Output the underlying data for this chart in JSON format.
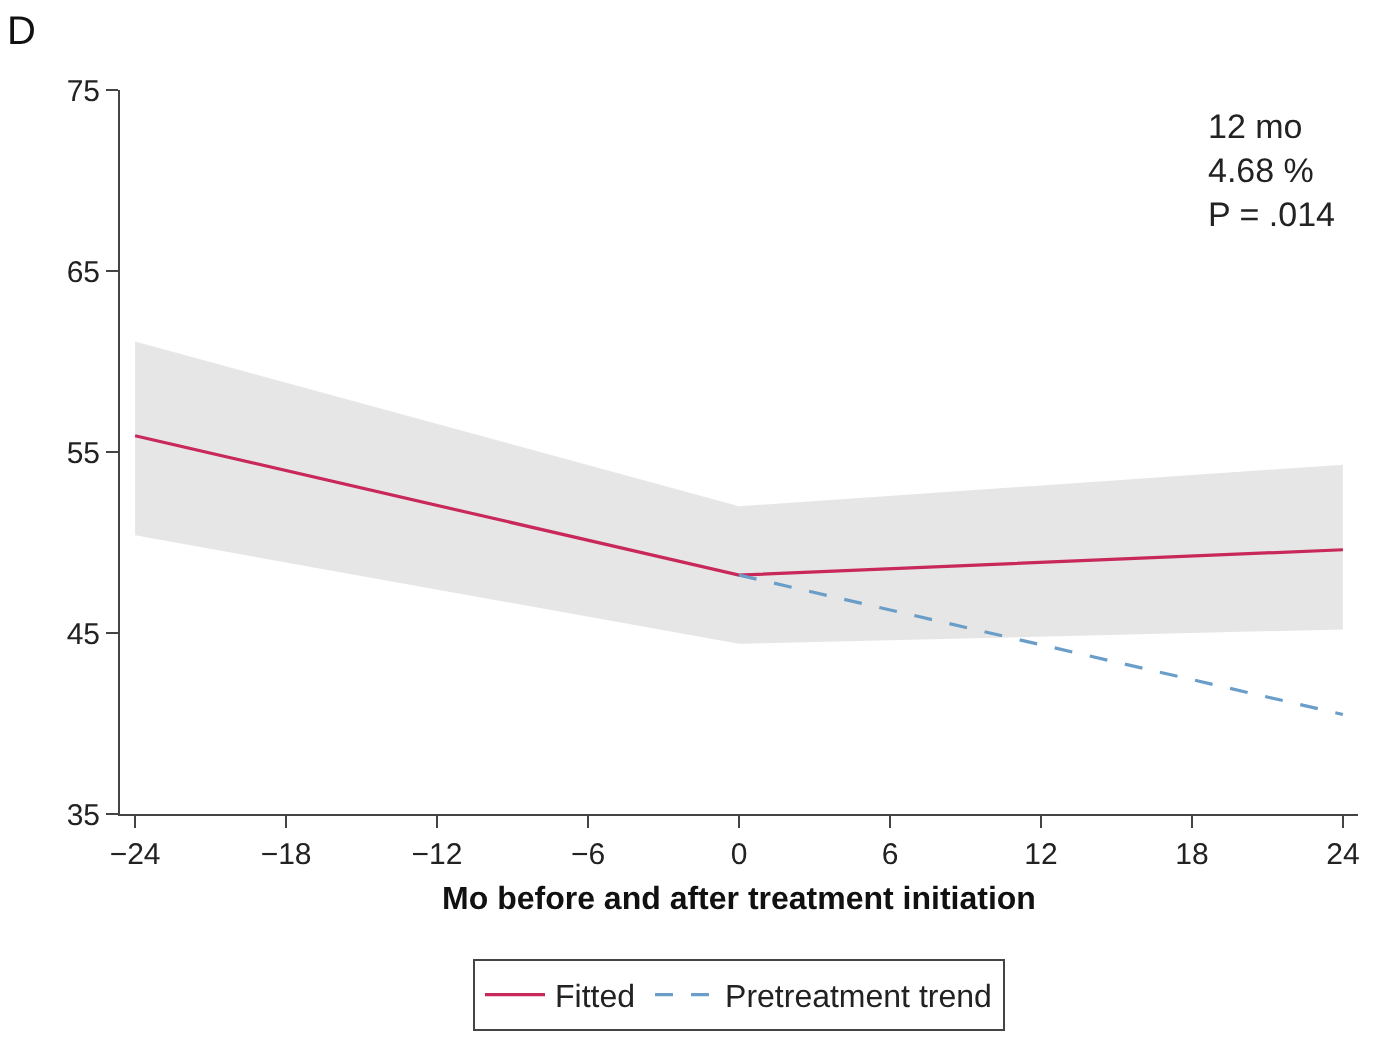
{
  "chart_data": {
    "type": "line",
    "title": "D",
    "xlabel": "Mo before and after treatment initiation",
    "xlim": [
      -24.6,
      24.6
    ],
    "xticks": [
      {
        "value": -24,
        "label": "−24"
      },
      {
        "value": -18,
        "label": "−18"
      },
      {
        "value": -12,
        "label": "−12"
      },
      {
        "value": -6,
        "label": "−6"
      },
      0,
      6,
      12,
      18,
      24
    ],
    "ylim": [
      35,
      75
    ],
    "yticks": [
      35,
      45,
      55,
      65,
      75
    ],
    "series": [
      {
        "name": "Fitted",
        "color": "#c8285a",
        "line_style": "solid",
        "x": [
          -24,
          0,
          24
        ],
        "values": [
          55.9,
          48.2,
          49.6
        ],
        "lower": [
          50.4,
          44.4,
          45.2
        ],
        "upper": [
          61.1,
          52.0,
          54.3
        ]
      },
      {
        "name": "Pretreatment trend",
        "color": "#6a9ec8",
        "line_style": "dashed",
        "x": [
          0,
          24
        ],
        "values": [
          48.2,
          40.5
        ]
      }
    ],
    "annotations": [
      "12 mo\n4.68 %\nP = .014"
    ],
    "legend": "bottom",
    "marker": "none"
  }
}
